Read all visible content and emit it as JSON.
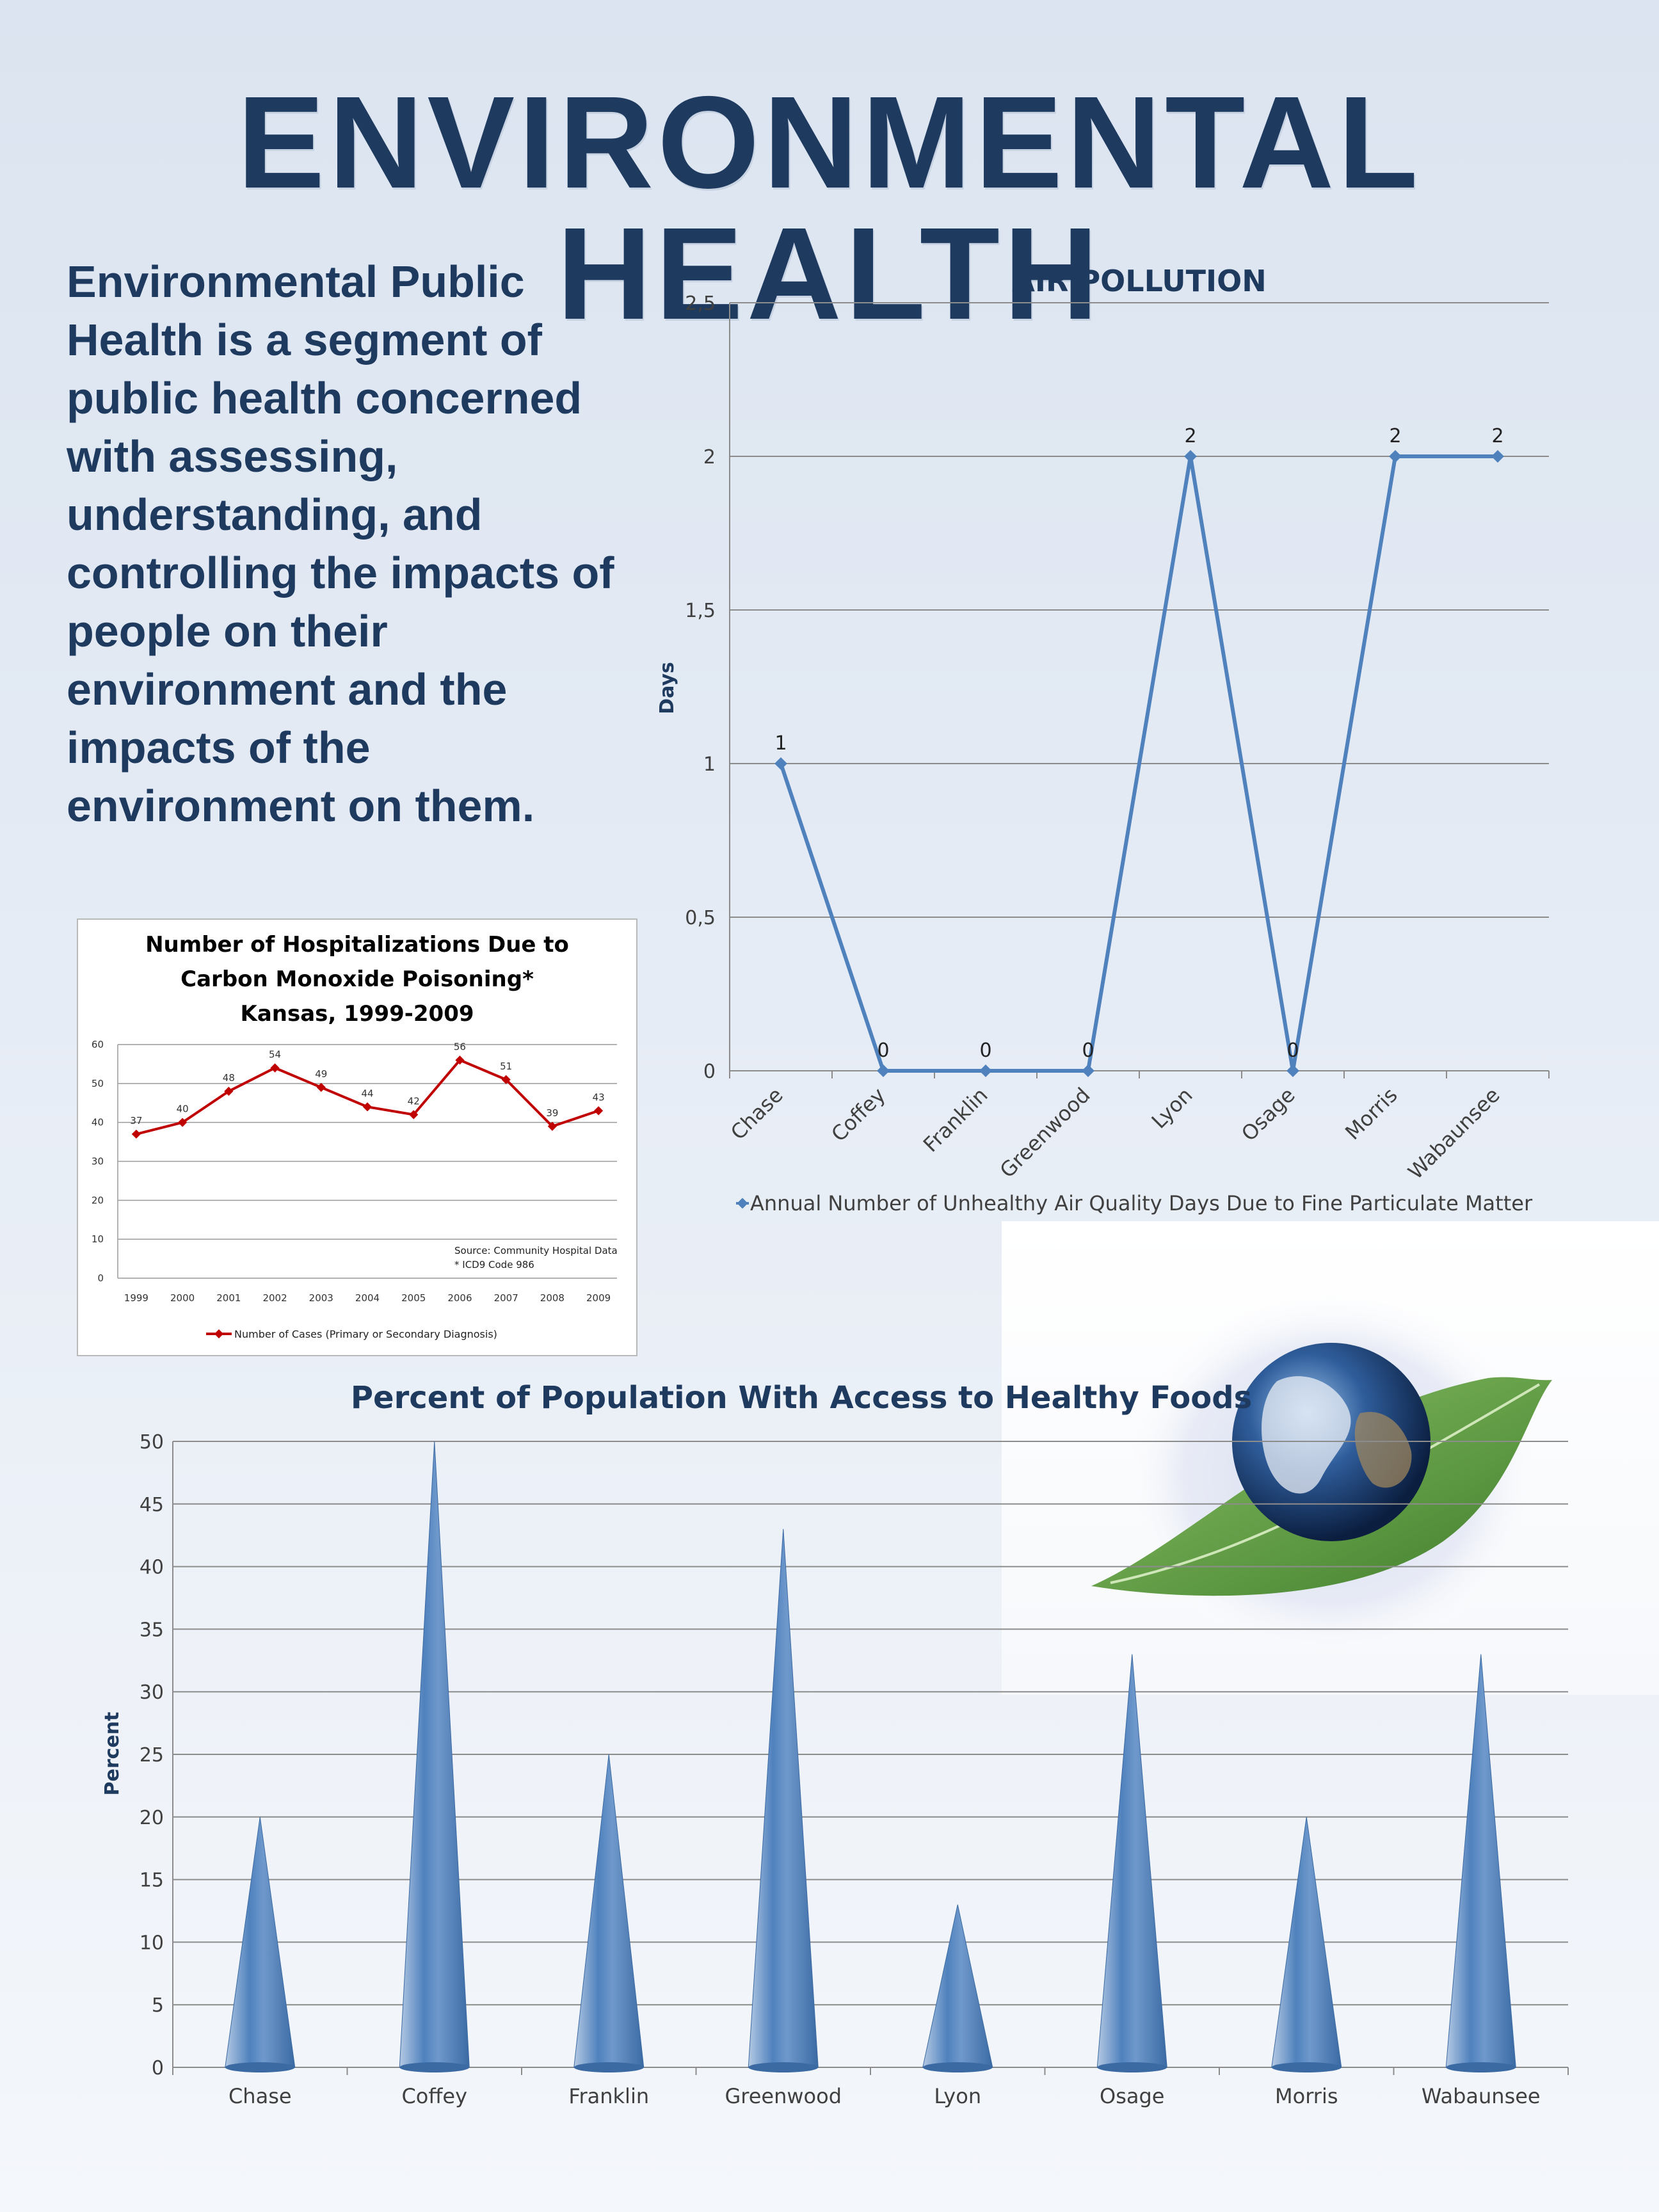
{
  "page": {
    "title": "ENVIRONMENTAL HEALTH",
    "intro": "Environmental Public Health is a segment of public health concerned with assessing, understanding, and controlling the impacts of people on their environment and the impacts of the environment on them."
  },
  "colors": {
    "title": "#1f3a5f",
    "air_line": "#4f81bd",
    "co_line": "#c00000",
    "bar": "#4f81bd",
    "grid": "#8c8c8c"
  },
  "chart_data": [
    {
      "id": "air",
      "type": "line",
      "title": "AIR POLLUTION",
      "ylabel": "Days",
      "xlabel": "",
      "categories": [
        "Chase",
        "Coffey",
        "Franklin",
        "Greenwood",
        "Lyon",
        "Osage",
        "Morris",
        "Wabaunsee"
      ],
      "values": [
        1,
        0,
        0,
        0,
        2,
        0,
        2,
        2
      ],
      "data_labels": [
        "1",
        "0",
        "0",
        "0",
        "2",
        "0",
        "2",
        "2"
      ],
      "ylim": [
        0,
        2.5
      ],
      "yticks": [
        0,
        0.5,
        1,
        1.5,
        2,
        2.5
      ],
      "ytick_labels": [
        "0",
        "0,5",
        "1",
        "1,5",
        "2",
        "2,5"
      ],
      "legend": "Annual Number of Unhealthy Air Quality Days Due to Fine Particulate Matter",
      "legend_position": "bottom",
      "grid": true
    },
    {
      "id": "co",
      "type": "line",
      "title": "Number of Hospitalizations Due to Carbon Monoxide Poisoning* Kansas, 1999-2009",
      "title_lines": [
        "Number of Hospitalizations Due to",
        "Carbon Monoxide Poisoning*",
        "Kansas, 1999-2009"
      ],
      "categories": [
        "1999",
        "2000",
        "2001",
        "2002",
        "2003",
        "2004",
        "2005",
        "2006",
        "2007",
        "2008",
        "2009"
      ],
      "values": [
        37,
        40,
        48,
        54,
        49,
        44,
        42,
        56,
        51,
        39,
        43
      ],
      "ylim": [
        0,
        60
      ],
      "yticks": [
        0,
        10,
        20,
        30,
        40,
        50,
        60
      ],
      "legend": "Number of Cases (Primary or Secondary Diagnosis)",
      "legend_position": "bottom",
      "notes": [
        "Source: Community Hospital Data",
        "* ICD9 Code 986"
      ],
      "grid": true
    },
    {
      "id": "foods",
      "type": "bar",
      "bar_shape": "cone",
      "title": "Percent of Population With Access to Healthy Foods",
      "ylabel": "Percent",
      "xlabel": "",
      "categories": [
        "Chase",
        "Coffey",
        "Franklin",
        "Greenwood",
        "Lyon",
        "Osage",
        "Morris",
        "Wabaunsee"
      ],
      "values": [
        20,
        50,
        25,
        43,
        13,
        33,
        20,
        33
      ],
      "ylim": [
        0,
        50
      ],
      "yticks": [
        0,
        5,
        10,
        15,
        20,
        25,
        30,
        35,
        40,
        45,
        50
      ],
      "grid": true
    }
  ]
}
